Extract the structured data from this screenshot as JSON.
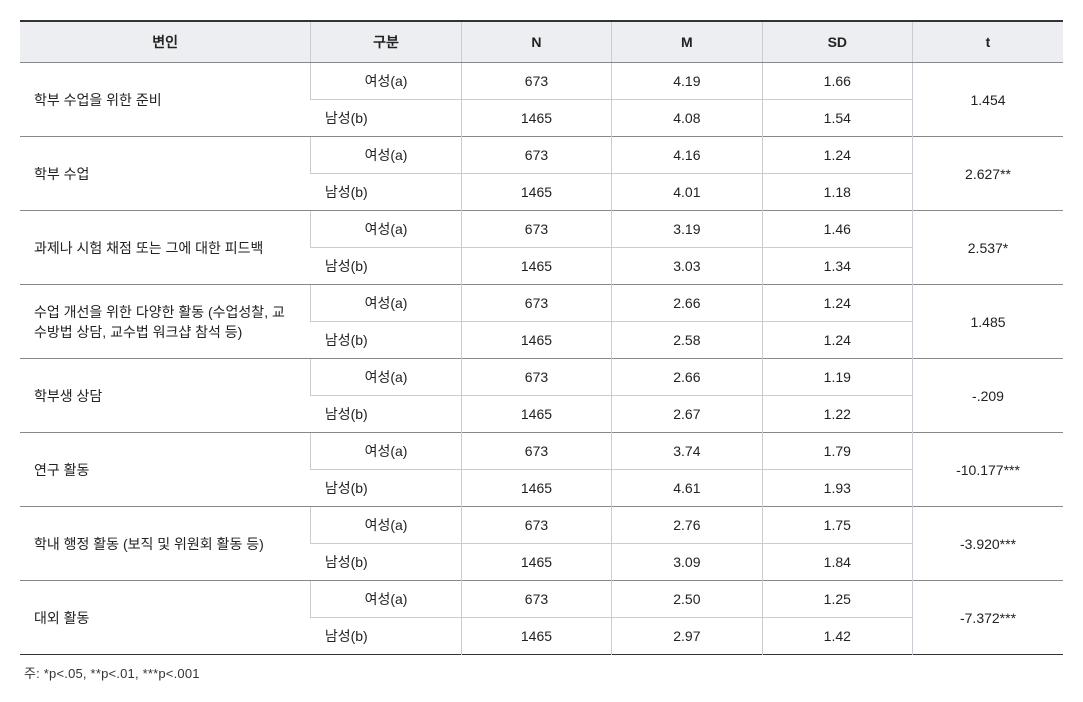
{
  "table": {
    "headers": {
      "variable": "변인",
      "group": "구분",
      "n": "N",
      "m": "M",
      "sd": "SD",
      "t": "t"
    },
    "groups": [
      {
        "label": "학부 수업을 위한 준비",
        "rows": [
          {
            "grp": "여성(a)",
            "n": "673",
            "m": "4.19",
            "sd": "1.66"
          },
          {
            "grp": "남성(b)",
            "n": "1465",
            "m": "4.08",
            "sd": "1.54"
          }
        ],
        "t": "1.454"
      },
      {
        "label": "학부 수업",
        "rows": [
          {
            "grp": "여성(a)",
            "n": "673",
            "m": "4.16",
            "sd": "1.24"
          },
          {
            "grp": "남성(b)",
            "n": "1465",
            "m": "4.01",
            "sd": "1.18"
          }
        ],
        "t": "2.627**"
      },
      {
        "label": "과제나 시험 채점 또는 그에 대한 피드백",
        "rows": [
          {
            "grp": "여성(a)",
            "n": "673",
            "m": "3.19",
            "sd": "1.46"
          },
          {
            "grp": "남성(b)",
            "n": "1465",
            "m": "3.03",
            "sd": "1.34"
          }
        ],
        "t": "2.537*"
      },
      {
        "label": "수업 개선을 위한 다양한 활동 (수업성찰, 교수방법 상담, 교수법 워크샵 참석 등)",
        "rows": [
          {
            "grp": "여성(a)",
            "n": "673",
            "m": "2.66",
            "sd": "1.24"
          },
          {
            "grp": "남성(b)",
            "n": "1465",
            "m": "2.58",
            "sd": "1.24"
          }
        ],
        "t": "1.485"
      },
      {
        "label": "학부생 상담",
        "rows": [
          {
            "grp": "여성(a)",
            "n": "673",
            "m": "2.66",
            "sd": "1.19"
          },
          {
            "grp": "남성(b)",
            "n": "1465",
            "m": "2.67",
            "sd": "1.22"
          }
        ],
        "t": "-.209"
      },
      {
        "label": "연구 활동",
        "rows": [
          {
            "grp": "여성(a)",
            "n": "673",
            "m": "3.74",
            "sd": "1.79"
          },
          {
            "grp": "남성(b)",
            "n": "1465",
            "m": "4.61",
            "sd": "1.93"
          }
        ],
        "t": "-10.177***"
      },
      {
        "label": "학내 행정 활동 (보직 및 위원회 활동 등)",
        "rows": [
          {
            "grp": "여성(a)",
            "n": "673",
            "m": "2.76",
            "sd": "1.75"
          },
          {
            "grp": "남성(b)",
            "n": "1465",
            "m": "3.09",
            "sd": "1.84"
          }
        ],
        "t": "-3.920***"
      },
      {
        "label": "대외 활동",
        "rows": [
          {
            "grp": "여성(a)",
            "n": "673",
            "m": "2.50",
            "sd": "1.25"
          },
          {
            "grp": "남성(b)",
            "n": "1465",
            "m": "2.97",
            "sd": "1.42"
          }
        ],
        "t": "-7.372***"
      }
    ],
    "footnote": "주: *p<.05, **p<.01, ***p<.001"
  }
}
